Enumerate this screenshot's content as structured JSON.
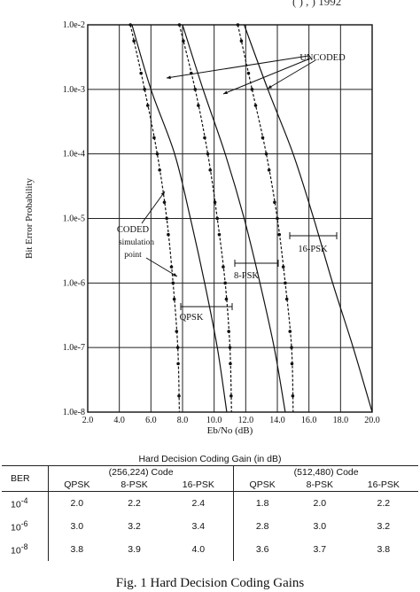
{
  "header_fragment": "( ) , ) 1992",
  "chart_data": {
    "type": "line",
    "x_label": "Eb/No (dB)",
    "y_label": "Bit Error Probability",
    "xlim": [
      2,
      20
    ],
    "ylim_log10": [
      -8,
      -2
    ],
    "y_scale": "log",
    "x_ticks": [
      "2.0",
      "4.0",
      "6.0",
      "8.0",
      "10.0",
      "12.0",
      "14.0",
      "16.0",
      "18.0",
      "20.0"
    ],
    "y_ticks": [
      "1.0e-2",
      "1.0e-3",
      "1.0e-4",
      "1.0e-5",
      "1.0e-6",
      "1.0e-7",
      "1.0e-8"
    ],
    "grid": true,
    "series": [
      {
        "style": "solid",
        "points": [
          [
            4.8,
            0.01
          ],
          [
            6.0,
            0.001
          ],
          [
            7.5,
            0.0001
          ],
          [
            8.5,
            1e-05
          ],
          [
            9.4,
            1e-06
          ],
          [
            10.2,
            1e-07
          ],
          [
            10.8,
            1e-08
          ]
        ]
      },
      {
        "style": "solid",
        "points": [
          [
            8.0,
            0.01
          ],
          [
            9.3,
            0.001
          ],
          [
            10.7,
            0.0001
          ],
          [
            11.9,
            1e-05
          ],
          [
            12.9,
            1e-06
          ],
          [
            13.8,
            1e-07
          ],
          [
            14.5,
            1e-08
          ]
        ]
      },
      {
        "style": "solid",
        "points": [
          [
            11.9,
            0.01
          ],
          [
            13.4,
            0.001
          ],
          [
            15.0,
            0.0001
          ],
          [
            16.3,
            1e-05
          ],
          [
            17.5,
            1e-06
          ],
          [
            18.8,
            1e-07
          ],
          [
            20.0,
            1e-08
          ]
        ]
      },
      {
        "style": "dashed",
        "points": [
          [
            4.7,
            0.01
          ],
          [
            5.6,
            0.001
          ],
          [
            6.4,
            0.0001
          ],
          [
            7.0,
            1e-05
          ],
          [
            7.4,
            1e-06
          ],
          [
            7.7,
            1e-07
          ],
          [
            7.8,
            1e-08
          ]
        ]
      },
      {
        "style": "dashed",
        "points": [
          [
            7.8,
            0.01
          ],
          [
            8.8,
            0.001
          ],
          [
            9.6,
            0.0001
          ],
          [
            10.2,
            1e-05
          ],
          [
            10.7,
            1e-06
          ],
          [
            11.0,
            1e-07
          ],
          [
            11.1,
            1e-08
          ]
        ]
      },
      {
        "style": "dashed",
        "points": [
          [
            11.5,
            0.01
          ],
          [
            12.4,
            0.001
          ],
          [
            13.3,
            0.0001
          ],
          [
            14.0,
            1e-05
          ],
          [
            14.5,
            1e-06
          ],
          [
            14.9,
            1e-07
          ],
          [
            15.0,
            1e-08
          ]
        ]
      }
    ],
    "annotations": [
      {
        "text": "UNCODED"
      },
      {
        "text": "CODED"
      },
      {
        "text": "simulation"
      },
      {
        "text": "point"
      },
      {
        "text": "QPSK"
      },
      {
        "text": "8-PSK"
      },
      {
        "text": "16-PSK"
      }
    ]
  },
  "table": {
    "title": "Hard Decision Coding Gain  (in dB)",
    "ber_header": "BER",
    "code1": "(256,224)  Code",
    "code2": "(512,480)   Code",
    "mods": [
      "QPSK",
      "8-PSK",
      "16-PSK"
    ],
    "rows": [
      {
        "ber_base": "10",
        "ber_exp": "-4",
        "c1": [
          "2.0",
          "2.2",
          "2.4"
        ],
        "c2": [
          "1.8",
          "2.0",
          "2.2"
        ]
      },
      {
        "ber_base": "10",
        "ber_exp": "-6",
        "c1": [
          "3.0",
          "3.2",
          "3.4"
        ],
        "c2": [
          "2.8",
          "3.0",
          "3.2"
        ]
      },
      {
        "ber_base": "10",
        "ber_exp": "-8",
        "c1": [
          "3.8",
          "3.9",
          "4.0"
        ],
        "c2": [
          "3.6",
          "3.7",
          "3.8"
        ]
      }
    ]
  },
  "caption": "Fig. 1 Hard Decision Coding Gains"
}
